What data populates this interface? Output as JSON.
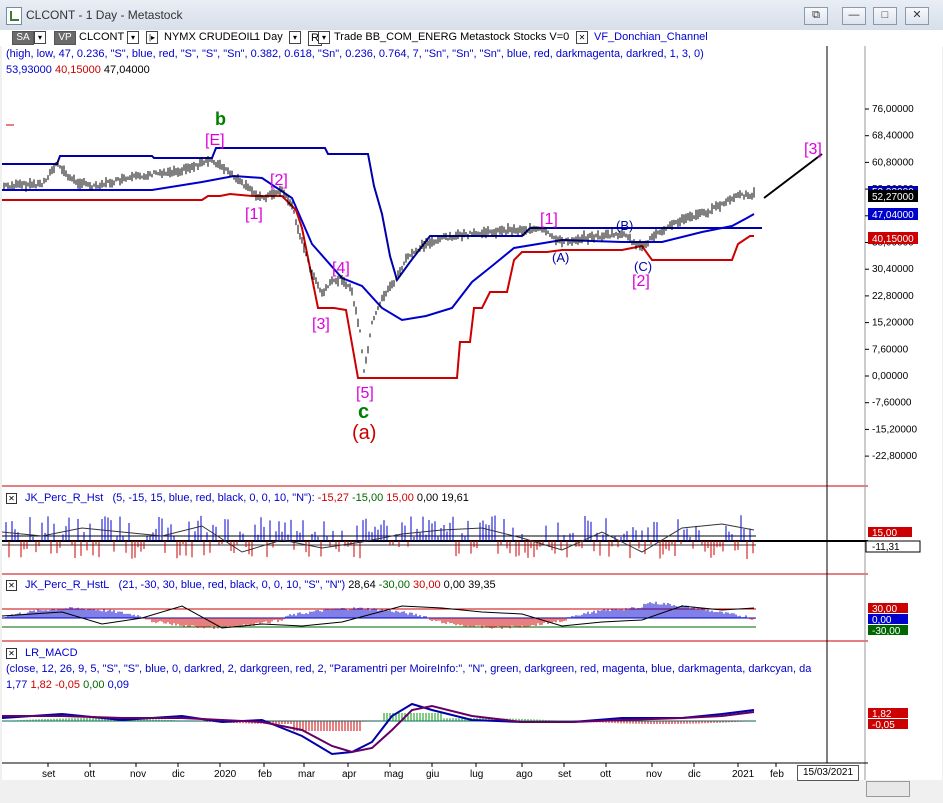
{
  "window": {
    "title": "CLCONT - 1 Day - Metastock",
    "controls": [
      "⧉",
      "—",
      "□",
      "✕"
    ]
  },
  "toolbar": {
    "sa_label": "SA",
    "vp_label": "VP",
    "symbol": "CLCONT",
    "name": "NYMX CRUDEOIL",
    "period": "1 Day",
    "mode": "R",
    "template": "Trade  BB_COM_ENERG  Metastock  Stocks  V=0",
    "indicator": "VF_Donchian_Channel"
  },
  "params_line": "(high,  low,  47,  0.236,  \"S\",  blue,  red,  \"S\",  \"S\",  \"Sn\",  0.382,  0.618,  \"Sn\",  0.236,  0.764,  7,  \"Sn\",  \"Sn\",  \"Sn\",  blue,  red,  darkmagenta,  darkred,  1,  3,  0)",
  "values_line": {
    "v1": "53,93000",
    "v2": "40,15000",
    "v3": "47,04000"
  },
  "price_axis": [
    "76,00000",
    "68,40000",
    "60,80000",
    "53,20000",
    "45,60000",
    "38,00000",
    "30,40000",
    "22,80000",
    "15,20000",
    "7,60000",
    "0,00000",
    "-7,60000",
    "-15,20000",
    "-22,80000"
  ],
  "price_flags": {
    "last": "52,27000",
    "mid": "47,04000",
    "low": "40,15000",
    "upper": "53,93000"
  },
  "labels": {
    "b": "b",
    "E": "[E]",
    "two_a": "[2]",
    "one_a": "[1]",
    "four": "[4]",
    "three_a": "[3]",
    "five": "[5]",
    "c": "c",
    "a_paren": "(a)",
    "one_b": "[1]",
    "A": "(A)",
    "B": "(B)",
    "C": "(C)",
    "two_b": "[2]",
    "three_b": "[3]"
  },
  "ind1": {
    "name": "JK_Perc_R_Hst",
    "params": "(5,  -15,  15,  blue,  red,  black,  0,  0,  10,  \"N\"):",
    "v1": "-15,27",
    "v2": "-15,00",
    "v3": "15,00",
    "v4": "0,00",
    "v5": "19,61",
    "flag_top": "15,00",
    "flag_bottom": "-11,31"
  },
  "ind2": {
    "name": "JK_Perc_R_HstL",
    "params": "(21,  -30,  30,  blue,  red,  black,  0,  0,  10,  \"S\",  \"N\")",
    "v1": "28,64",
    "v2": "-30,00",
    "v3": "30,00",
    "v4": "0,00",
    "v5": "39,35",
    "flags": [
      "30,00",
      "0,00",
      "-30,00"
    ]
  },
  "ind3": {
    "name": "LR_MACD",
    "params": "(close,  12,  26,  9,  5,  \"S\",  \"S\",  blue,  0,  darkred,  2,  darkgreen,  red,  2,  \"Paramentri per MoireInfo:\",  \"N\",  green,  darkgreen,  red,  magenta,  blue,  darkmagenta,  darkcyan,  da",
    "v1": "1,77",
    "v2": "1,82",
    "v3": "-0,05",
    "v4": "0,00",
    "v5": "0,09",
    "flags": [
      "1,82",
      "-0,05"
    ]
  },
  "time_axis": [
    "set",
    "ott",
    "nov",
    "dic",
    "2020",
    "feb",
    "mar",
    "apr",
    "mag",
    "giu",
    "lug",
    "ago",
    "set",
    "ott",
    "nov",
    "dic",
    "2021",
    "feb"
  ],
  "date_box": "15/03/2021",
  "colors": {
    "upper": "#0000aa",
    "lower": "#cc0000",
    "mid": "#0000cc",
    "magenta": "#dd00dd",
    "green": "#008000"
  }
}
